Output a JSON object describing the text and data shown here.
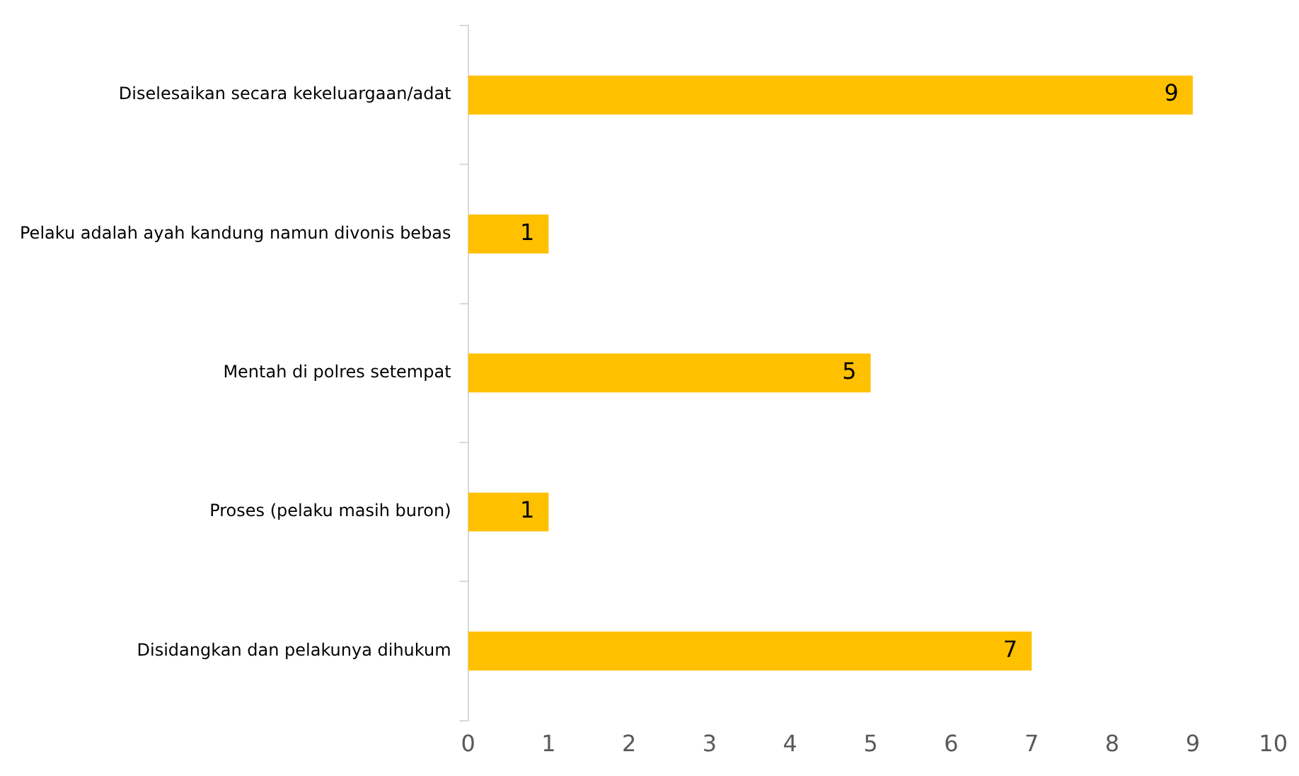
{
  "chart_data": {
    "type": "bar",
    "orientation": "horizontal",
    "categories": [
      "Diselesaikan secara kekeluargaan/adat",
      "Pelaku adalah ayah kandung namun divonis bebas",
      "Mentah di polres setempat",
      "Proses (pelaku masih buron)",
      "Disidangkan dan pelakunya dihukum"
    ],
    "values": [
      9,
      1,
      5,
      1,
      7
    ],
    "color": "#ffc000",
    "xlim": [
      0,
      10
    ],
    "xticks": [
      0,
      1,
      2,
      3,
      4,
      5,
      6,
      7,
      8,
      9,
      10
    ],
    "grid": false,
    "legend": false,
    "data_labels": true
  }
}
